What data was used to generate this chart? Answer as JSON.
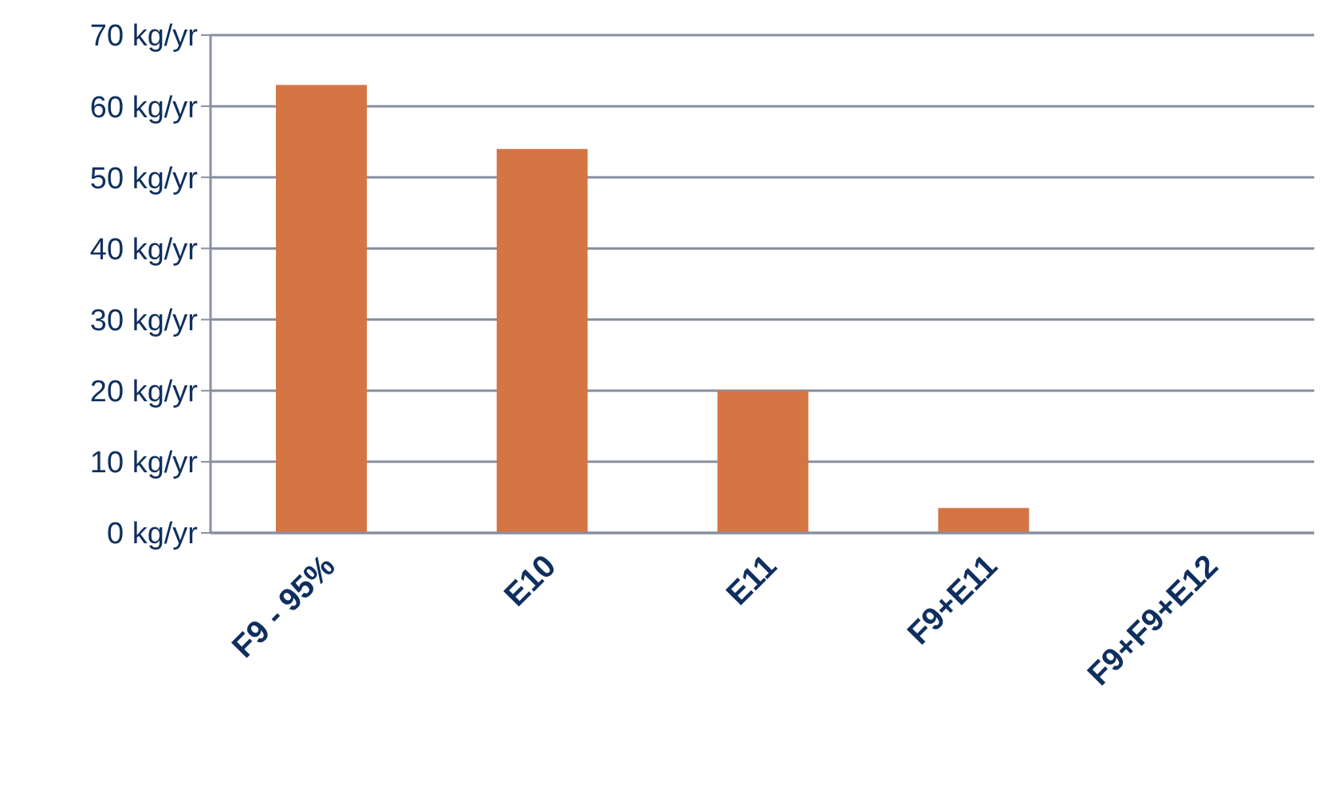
{
  "chart_data": {
    "type": "bar",
    "categories": [
      "F9 - 95%",
      "E10",
      "E11",
      "F9+E11",
      "F9+F9+E12"
    ],
    "values": [
      63,
      54,
      20,
      3.5,
      0
    ],
    "color": "#d57544",
    "ylim": [
      0,
      70
    ],
    "yticks": [
      {
        "value": 0,
        "label": "0 kg/yr"
      },
      {
        "value": 10,
        "label": "10 kg/yr"
      },
      {
        "value": 20,
        "label": "20 kg/yr"
      },
      {
        "value": 30,
        "label": "30 kg/yr"
      },
      {
        "value": 40,
        "label": "40 kg/yr"
      },
      {
        "value": 50,
        "label": "50 kg/yr"
      },
      {
        "value": 60,
        "label": "60 kg/yr"
      },
      {
        "value": 70,
        "label": "70 kg/yr"
      }
    ],
    "grid": "y"
  }
}
